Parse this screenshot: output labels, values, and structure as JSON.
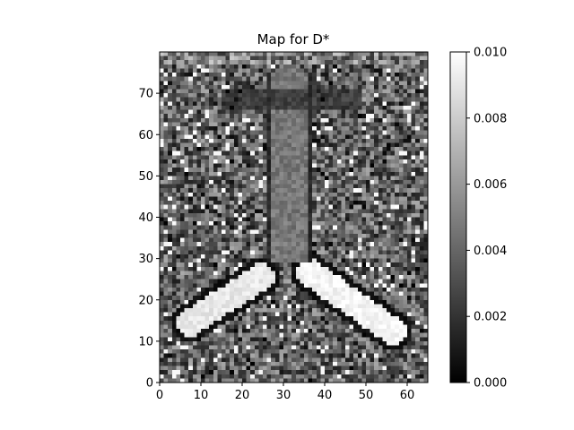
{
  "chart_data": [
    {
      "type": "heatmap",
      "title": "Map for D*",
      "xlabel": "",
      "ylabel": "",
      "xlim": [
        0,
        65
      ],
      "ylim": [
        0,
        80
      ],
      "xticks": [
        0,
        10,
        20,
        30,
        40,
        50,
        60
      ],
      "yticks": [
        0,
        10,
        20,
        30,
        40,
        50,
        60,
        70
      ],
      "grid": false,
      "grid_shape": {
        "columns": 65,
        "rows": 80
      },
      "colormap": "gray",
      "origin": "lower",
      "colorbar": {
        "vmin": 0.0,
        "vmax": 0.01,
        "ticks": [
          "0.000",
          "0.002",
          "0.004",
          "0.006",
          "0.008",
          "0.010"
        ]
      },
      "features": [
        "symmetric butterfly-shaped ventricle structure centered near x=32",
        "bright elongated lobes lower-left (x 5-25, y 10-25) and lower-right (x 35-58, y 8-28)",
        "dark rim outlining the lobes",
        "speckled mid-gray background with scattered white pixels"
      ]
    }
  ]
}
